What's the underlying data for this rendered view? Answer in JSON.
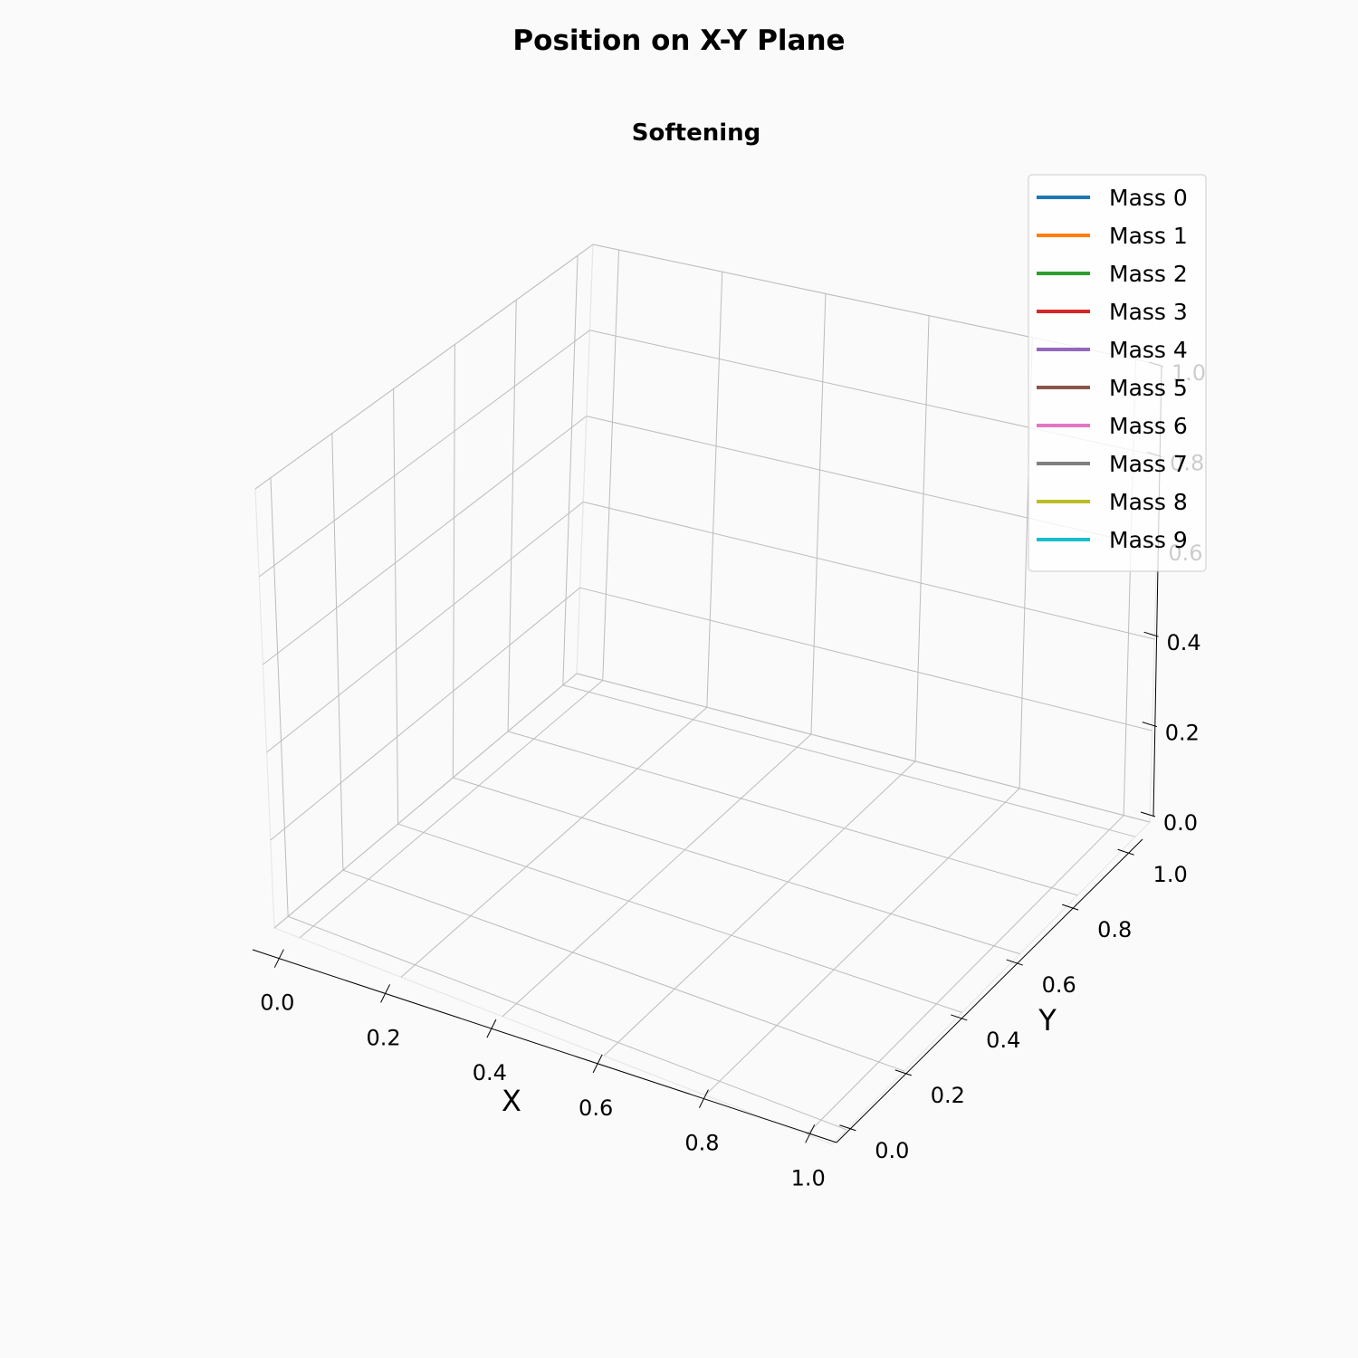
{
  "figure": {
    "suptitle": "Position on X-Y Plane"
  },
  "chart_data": {
    "type": "line",
    "projection": "3d",
    "title": "Softening",
    "xlabel": "X",
    "ylabel": "Y",
    "zlabel": "",
    "xlim": [
      -0.05,
      1.05
    ],
    "ylim": [
      -0.05,
      1.05
    ],
    "zlim": [
      0.0,
      1.0
    ],
    "xticks": [
      "0.0",
      "0.2",
      "0.4",
      "0.6",
      "0.8",
      "1.0"
    ],
    "yticks": [
      "0.0",
      "0.2",
      "0.4",
      "0.6",
      "0.8",
      "1.0"
    ],
    "zticks": [
      "0.0",
      "0.2",
      "0.4",
      "0.6",
      "0.8",
      "1.0"
    ],
    "grid": true,
    "legend_placement": "top-right",
    "series": [
      {
        "name": "Mass 0",
        "color": "#1f77b4",
        "x": [],
        "y": [],
        "z": []
      },
      {
        "name": "Mass 1",
        "color": "#ff7f0e",
        "x": [],
        "y": [],
        "z": []
      },
      {
        "name": "Mass 2",
        "color": "#2ca02c",
        "x": [],
        "y": [],
        "z": []
      },
      {
        "name": "Mass 3",
        "color": "#d62728",
        "x": [],
        "y": [],
        "z": []
      },
      {
        "name": "Mass 4",
        "color": "#9467bd",
        "x": [],
        "y": [],
        "z": []
      },
      {
        "name": "Mass 5",
        "color": "#8c564b",
        "x": [],
        "y": [],
        "z": []
      },
      {
        "name": "Mass 6",
        "color": "#e377c2",
        "x": [],
        "y": [],
        "z": []
      },
      {
        "name": "Mass 7",
        "color": "#7f7f7f",
        "x": [],
        "y": [],
        "z": []
      },
      {
        "name": "Mass 8",
        "color": "#bcbd22",
        "x": [],
        "y": [],
        "z": []
      },
      {
        "name": "Mass 9",
        "color": "#17becf",
        "x": [],
        "y": [],
        "z": []
      }
    ]
  }
}
